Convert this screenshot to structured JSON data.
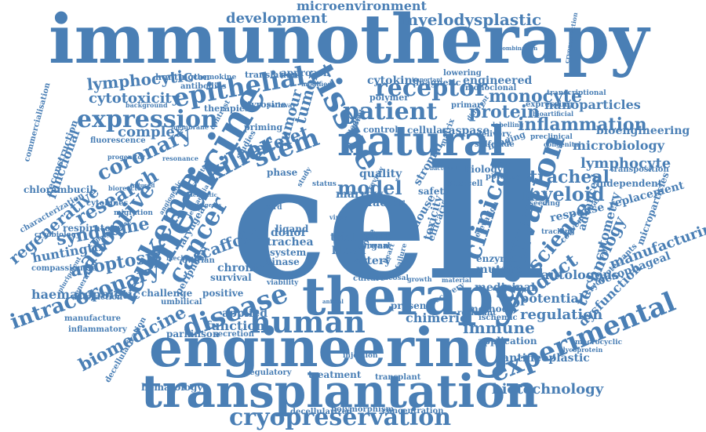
{
  "color": "#4a7fb5",
  "words": [
    "immunotherapy",
    "cell",
    "therapy",
    "engineering",
    "transplantation",
    "natural",
    "tissue",
    "medicine",
    "human",
    "disease",
    "experimental",
    "activation",
    "leukemia",
    "cancer",
    "cryopreservation",
    "epithelial",
    "receptor",
    "patient",
    "expression",
    "killer",
    "clinical",
    "stem",
    "coronary",
    "intracoronary",
    "research",
    "adoptive",
    "model",
    "science",
    "product",
    "microenvironment",
    "development",
    "myelodysplastic",
    "lymphocytic",
    "cytotoxicity",
    "monocyte",
    "protein",
    "inflammation",
    "platelet",
    "tumor",
    "tumour",
    "myeloid",
    "tracheal",
    "lymphocyte",
    "microbiology",
    "bioengineering",
    "nanoparticles",
    "replacement",
    "manufacturing",
    "technology",
    "response",
    "cytometry",
    "regenerative",
    "syndrome",
    "huntingtin",
    "apoptosis",
    "haematopoietic",
    "biomedicine",
    "hematology",
    "biotechnology",
    "antineoplastic",
    "immune",
    "regulation",
    "potential",
    "autologous",
    "chimeric",
    "scaffold",
    "function",
    "applied",
    "functional",
    "reconstruction",
    "chlorambucil",
    "marrow",
    "quality",
    "donor",
    "trachea",
    "trial",
    "blood",
    "graft",
    "artery",
    "system",
    "kinase",
    "chronic",
    "survival",
    "positive",
    "challenge",
    "umbilical",
    "interaction",
    "inflammatory",
    "respiratory",
    "cytokine",
    "engineered",
    "magnetic",
    "cytokines",
    "fluorescence",
    "complex",
    "phase",
    "treatment",
    "transplant",
    "regulatory",
    "polymorphism",
    "concentration",
    "decellularized",
    "mutant",
    "enzyme",
    "method",
    "present",
    "medicinal",
    "resistant",
    "ischemic",
    "application",
    "cryoprotectants",
    "oesophageal",
    "dysfunction",
    "advanced",
    "independent",
    "transposition",
    "microparticles",
    "huntington",
    "antibodies",
    "translation",
    "approach",
    "chemokine",
    "lowering",
    "monoclonal",
    "therapies",
    "polymer",
    "tyrosine",
    "priming",
    "pathway",
    "ligand",
    "stromal",
    "factor",
    "mouse",
    "toxicity",
    "safety",
    "efficacy",
    "elevation",
    "viability",
    "recovery",
    "commercialisation",
    "compassionate",
    "manufacture",
    "migration",
    "characterization",
    "decellularization",
    "parkinson",
    "secretion",
    "ovarian",
    "peripheral",
    "laryngeal",
    "biology",
    "delivery",
    "sulfoxide",
    "cellular",
    "caspase",
    "control",
    "tracking",
    "conventional",
    "macrocyclic",
    "glycoprotein",
    "seeding",
    "preclinical",
    "congenital",
    "labelling",
    "primary",
    "expressing",
    "transcriptional",
    "combination",
    "cryoprotection",
    "injection",
    "culture",
    "mucosal",
    "growth",
    "material",
    "organ",
    "bone",
    "heart",
    "failure",
    "imaging",
    "potency",
    "matrix",
    "mastcell",
    "different",
    "important",
    "modified",
    "agent",
    "adhesion",
    "renal",
    "study",
    "review",
    "animal",
    "membrane",
    "progenitor",
    "background",
    "resonance",
    "contrast",
    "studies",
    "selected",
    "reagents",
    "dendritic",
    "induced",
    "pluripotent",
    "generation",
    "bioreactor",
    "cryobiology",
    "polymerase",
    "bioartificial",
    "bacterial",
    "virus",
    "cord",
    "status",
    "leukaemia",
    "angiogenic",
    "mechanism"
  ]
}
